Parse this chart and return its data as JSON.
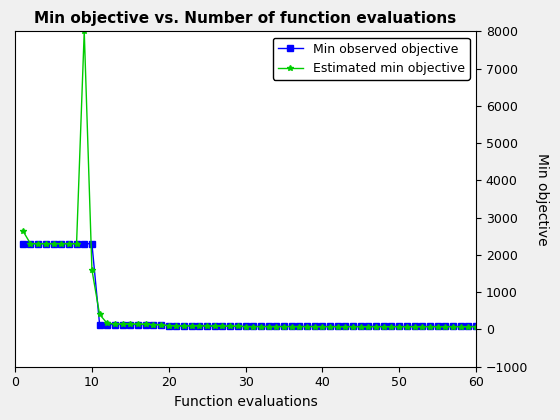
{
  "title": "Min objective vs. Number of function evaluations",
  "xlabel": "Function evaluations",
  "ylabel": "Min objective",
  "xlim": [
    0,
    60
  ],
  "ylim": [
    -1000,
    8000
  ],
  "yticks": [
    -1000,
    0,
    1000,
    2000,
    3000,
    4000,
    5000,
    6000,
    7000,
    8000
  ],
  "xticks": [
    0,
    10,
    20,
    30,
    40,
    50,
    60
  ],
  "line1_color": "#0000ff",
  "line1_marker": "s",
  "line1_label": "Min observed objective",
  "line1_x": [
    1,
    2,
    3,
    4,
    5,
    6,
    7,
    8,
    9,
    10,
    11,
    12,
    13,
    14,
    15,
    16,
    17,
    18,
    19,
    20,
    21,
    22,
    23,
    24,
    25,
    26,
    27,
    28,
    29,
    30,
    31,
    32,
    33,
    34,
    35,
    36,
    37,
    38,
    39,
    40,
    41,
    42,
    43,
    44,
    45,
    46,
    47,
    48,
    49,
    50,
    51,
    52,
    53,
    54,
    55,
    56,
    57,
    58,
    59,
    60
  ],
  "line1_y": [
    2300,
    2300,
    2300,
    2300,
    2300,
    2300,
    2300,
    2300,
    2300,
    2300,
    130,
    130,
    130,
    130,
    130,
    130,
    130,
    130,
    130,
    95,
    95,
    95,
    95,
    95,
    95,
    95,
    95,
    80,
    80,
    80,
    80,
    80,
    80,
    80,
    80,
    80,
    80,
    80,
    80,
    80,
    80,
    80,
    80,
    80,
    80,
    80,
    80,
    80,
    80,
    80,
    80,
    80,
    80,
    80,
    80,
    80,
    80,
    80,
    80,
    80
  ],
  "line2_color": "#00cc00",
  "line2_marker": "*",
  "line2_label": "Estimated min objective",
  "line2_x": [
    1,
    2,
    3,
    4,
    5,
    6,
    7,
    8,
    9,
    10,
    11,
    12,
    13,
    14,
    15,
    16,
    17,
    18,
    19,
    20,
    21,
    22,
    23,
    24,
    25,
    26,
    27,
    28,
    29,
    30,
    31,
    32,
    33,
    34,
    35,
    36,
    37,
    38,
    39,
    40,
    41,
    42,
    43,
    44,
    45,
    46,
    47,
    48,
    49,
    50,
    51,
    52,
    53,
    54,
    55,
    56,
    57,
    58,
    59,
    60
  ],
  "line2_y": [
    2650,
    2300,
    2300,
    2300,
    2300,
    2300,
    2300,
    2300,
    8000,
    1600,
    400,
    160,
    145,
    140,
    140,
    140,
    135,
    130,
    120,
    100,
    90,
    90,
    90,
    90,
    90,
    85,
    85,
    80,
    80,
    75,
    75,
    75,
    75,
    75,
    75,
    75,
    75,
    75,
    75,
    70,
    70,
    70,
    70,
    70,
    70,
    70,
    70,
    70,
    70,
    70,
    70,
    70,
    70,
    70,
    70,
    70,
    70,
    70,
    70,
    70
  ],
  "legend_loc": "upper right",
  "fig_facecolor": "#f0f0f0",
  "axes_facecolor": "#ffffff",
  "marker_size": 4,
  "linewidth": 1.0,
  "title_fontsize": 11,
  "label_fontsize": 10,
  "tick_fontsize": 9,
  "legend_fontsize": 9
}
